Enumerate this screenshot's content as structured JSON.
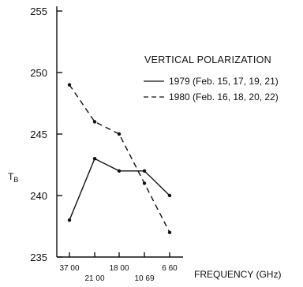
{
  "chart_data": {
    "type": "line",
    "xlabel": "FREQUENCY (GHz)",
    "ylabel": "T",
    "ylabel_subscript": "B",
    "categories": [
      "37.00",
      "21.00",
      "18.00",
      "10.69",
      "6.60"
    ],
    "tick_labels": [
      "37 00",
      "21 00",
      "18 00",
      "10 69",
      "6 60"
    ],
    "ylim": [
      235,
      255
    ],
    "yticks": [
      "235",
      "240",
      "245",
      "250",
      "255"
    ],
    "legend_title": "VERTICAL POLARIZATION",
    "legend_placement": "right",
    "grid": false,
    "series": [
      {
        "name": "1979 (Feb. 15, 17, 19, 21)",
        "style": "solid",
        "color": "#111111",
        "values": [
          238,
          243,
          242,
          242,
          240
        ]
      },
      {
        "name": "1980 (Feb. 16, 18, 20, 22)",
        "style": "dashed",
        "color": "#111111",
        "values": [
          249,
          246,
          245,
          241,
          237
        ]
      }
    ]
  }
}
